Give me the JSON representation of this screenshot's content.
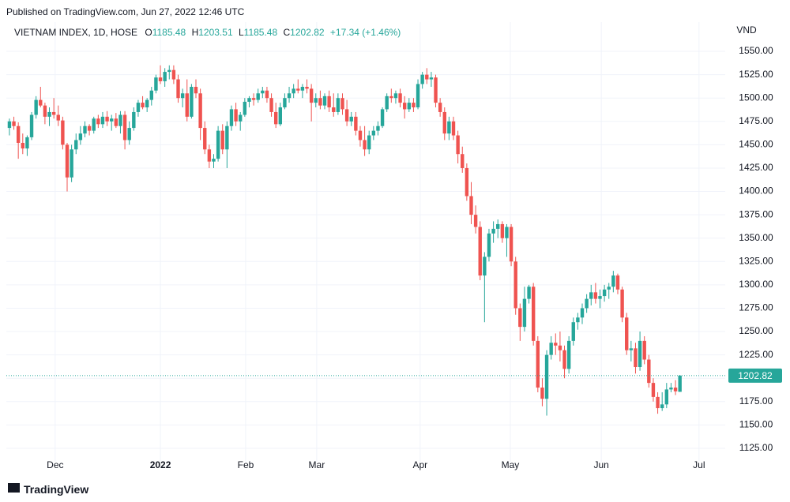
{
  "published": "Published on TradingView.com, Jun 27, 2022 12:46 UTC",
  "brand": "TradingView",
  "chart_data": {
    "type": "candlestick",
    "title": "VIETNAM INDEX, 1D, HOSE",
    "ohlc_keys": [
      "O",
      "H",
      "L",
      "C"
    ],
    "change": "+17.34 (+1.46%)",
    "unit": "VND",
    "up_color": "#26a69a",
    "down_color": "#ef5350",
    "grid": true,
    "xlim": [
      -0.7,
      161.2
    ],
    "xticks": [
      {
        "value": 10.3,
        "label": "Dec"
      },
      {
        "value": 34,
        "label": "2022"
      },
      {
        "value": 53.2,
        "label": "Feb"
      },
      {
        "value": 69.2,
        "label": "Mar"
      },
      {
        "value": 92.5,
        "label": "Apr"
      },
      {
        "value": 112.8,
        "label": "May"
      },
      {
        "value": 133.3,
        "label": "Jun"
      },
      {
        "value": 155.3,
        "label": "Jul"
      }
    ],
    "ylim": [
      1110.6,
      1581.3
    ],
    "yticks": [
      {
        "value": 1125,
        "label": "1125.00"
      },
      {
        "value": 1150,
        "label": "1150.00"
      },
      {
        "value": 1175,
        "label": "1175.00"
      },
      {
        "value": 1200,
        "label": "1200.00"
      },
      {
        "value": 1225,
        "label": "1225.00"
      },
      {
        "value": 1250,
        "label": "1250.00"
      },
      {
        "value": 1275,
        "label": "1275.00"
      },
      {
        "value": 1300,
        "label": "1300.00"
      },
      {
        "value": 1325,
        "label": "1325.00"
      },
      {
        "value": 1350,
        "label": "1350.00"
      },
      {
        "value": 1375,
        "label": "1375.00"
      },
      {
        "value": 1400,
        "label": "1400.00"
      },
      {
        "value": 1425,
        "label": "1425.00"
      },
      {
        "value": 1450,
        "label": "1450.00"
      },
      {
        "value": 1475,
        "label": "1475.00"
      },
      {
        "value": 1500,
        "label": "1500.00"
      },
      {
        "value": 1525,
        "label": "1525.00"
      },
      {
        "value": 1550,
        "label": "1550.00"
      }
    ],
    "values": [
      [
        1468,
        1478,
        1460,
        1475
      ],
      [
        1475,
        1480,
        1466,
        1470
      ],
      [
        1470,
        1474,
        1435,
        1452
      ],
      [
        1452,
        1462,
        1440,
        1446
      ],
      [
        1446,
        1460,
        1438,
        1458
      ],
      [
        1458,
        1485,
        1455,
        1482
      ],
      [
        1482,
        1502,
        1478,
        1498
      ],
      [
        1498,
        1512,
        1490,
        1492
      ],
      [
        1492,
        1495,
        1472,
        1480
      ],
      [
        1480,
        1490,
        1470,
        1485
      ],
      [
        1485,
        1500,
        1478,
        1482
      ],
      [
        1482,
        1492,
        1470,
        1476
      ],
      [
        1476,
        1480,
        1445,
        1450
      ],
      [
        1450,
        1452,
        1400,
        1415
      ],
      [
        1415,
        1450,
        1410,
        1445
      ],
      [
        1445,
        1462,
        1440,
        1455
      ],
      [
        1455,
        1470,
        1450,
        1462
      ],
      [
        1462,
        1475,
        1458,
        1470
      ],
      [
        1470,
        1472,
        1460,
        1465
      ],
      [
        1465,
        1480,
        1462,
        1478
      ],
      [
        1478,
        1482,
        1468,
        1472
      ],
      [
        1472,
        1485,
        1468,
        1480
      ],
      [
        1480,
        1486,
        1470,
        1475
      ],
      [
        1475,
        1482,
        1465,
        1478
      ],
      [
        1478,
        1484,
        1468,
        1470
      ],
      [
        1470,
        1486,
        1462,
        1482
      ],
      [
        1482,
        1486,
        1445,
        1455
      ],
      [
        1455,
        1475,
        1450,
        1468
      ],
      [
        1468,
        1490,
        1465,
        1485
      ],
      [
        1485,
        1498,
        1480,
        1495
      ],
      [
        1495,
        1502,
        1488,
        1490
      ],
      [
        1490,
        1500,
        1485,
        1498
      ],
      [
        1498,
        1512,
        1492,
        1508
      ],
      [
        1508,
        1525,
        1505,
        1522
      ],
      [
        1522,
        1535,
        1515,
        1518
      ],
      [
        1518,
        1532,
        1512,
        1528
      ],
      [
        1528,
        1535,
        1520,
        1530
      ],
      [
        1530,
        1535,
        1515,
        1520
      ],
      [
        1520,
        1525,
        1495,
        1500
      ],
      [
        1500,
        1510,
        1490,
        1505
      ],
      [
        1505,
        1520,
        1475,
        1480
      ],
      [
        1480,
        1515,
        1478,
        1512
      ],
      [
        1512,
        1520,
        1500,
        1505
      ],
      [
        1505,
        1510,
        1455,
        1468
      ],
      [
        1468,
        1475,
        1440,
        1445
      ],
      [
        1445,
        1450,
        1425,
        1432
      ],
      [
        1432,
        1440,
        1425,
        1435
      ],
      [
        1435,
        1470,
        1432,
        1465
      ],
      [
        1465,
        1472,
        1440,
        1445
      ],
      [
        1445,
        1475,
        1425,
        1470
      ],
      [
        1470,
        1492,
        1465,
        1488
      ],
      [
        1488,
        1495,
        1470,
        1475
      ],
      [
        1475,
        1485,
        1465,
        1482
      ],
      [
        1482,
        1500,
        1480,
        1496
      ],
      [
        1496,
        1502,
        1490,
        1500
      ],
      [
        1500,
        1505,
        1492,
        1498
      ],
      [
        1498,
        1510,
        1495,
        1505
      ],
      [
        1505,
        1512,
        1500,
        1508
      ],
      [
        1508,
        1512,
        1495,
        1500
      ],
      [
        1500,
        1505,
        1480,
        1485
      ],
      [
        1485,
        1495,
        1468,
        1472
      ],
      [
        1472,
        1495,
        1470,
        1490
      ],
      [
        1490,
        1505,
        1488,
        1500
      ],
      [
        1500,
        1512,
        1495,
        1505
      ],
      [
        1505,
        1515,
        1500,
        1510
      ],
      [
        1510,
        1520,
        1505,
        1508
      ],
      [
        1508,
        1515,
        1500,
        1512
      ],
      [
        1512,
        1520,
        1505,
        1510
      ],
      [
        1510,
        1515,
        1475,
        1495
      ],
      [
        1495,
        1505,
        1490,
        1500
      ],
      [
        1500,
        1508,
        1488,
        1492
      ],
      [
        1492,
        1505,
        1488,
        1502
      ],
      [
        1502,
        1508,
        1485,
        1490
      ],
      [
        1490,
        1505,
        1480,
        1485
      ],
      [
        1485,
        1505,
        1482,
        1500
      ],
      [
        1500,
        1505,
        1482,
        1488
      ],
      [
        1488,
        1498,
        1470,
        1475
      ],
      [
        1475,
        1485,
        1470,
        1480
      ],
      [
        1480,
        1485,
        1460,
        1465
      ],
      [
        1465,
        1470,
        1448,
        1455
      ],
      [
        1455,
        1470,
        1438,
        1445
      ],
      [
        1445,
        1465,
        1440,
        1460
      ],
      [
        1460,
        1470,
        1455,
        1465
      ],
      [
        1465,
        1475,
        1460,
        1470
      ],
      [
        1470,
        1490,
        1468,
        1488
      ],
      [
        1488,
        1505,
        1485,
        1502
      ],
      [
        1502,
        1510,
        1495,
        1500
      ],
      [
        1500,
        1508,
        1494,
        1505
      ],
      [
        1505,
        1510,
        1490,
        1495
      ],
      [
        1495,
        1502,
        1478,
        1488
      ],
      [
        1488,
        1500,
        1485,
        1495
      ],
      [
        1495,
        1500,
        1485,
        1490
      ],
      [
        1490,
        1520,
        1488,
        1515
      ],
      [
        1515,
        1528,
        1510,
        1525
      ],
      [
        1525,
        1532,
        1515,
        1520
      ],
      [
        1520,
        1528,
        1512,
        1522
      ],
      [
        1522,
        1525,
        1490,
        1495
      ],
      [
        1495,
        1500,
        1480,
        1485
      ],
      [
        1485,
        1490,
        1455,
        1462
      ],
      [
        1462,
        1480,
        1455,
        1475
      ],
      [
        1475,
        1480,
        1455,
        1460
      ],
      [
        1460,
        1465,
        1430,
        1440
      ],
      [
        1440,
        1448,
        1420,
        1425
      ],
      [
        1425,
        1430,
        1390,
        1395
      ],
      [
        1395,
        1410,
        1365,
        1375
      ],
      [
        1375,
        1385,
        1355,
        1362
      ],
      [
        1362,
        1368,
        1305,
        1310
      ],
      [
        1310,
        1335,
        1260,
        1330
      ],
      [
        1330,
        1360,
        1325,
        1355
      ],
      [
        1355,
        1368,
        1345,
        1360
      ],
      [
        1360,
        1370,
        1350,
        1365
      ],
      [
        1365,
        1368,
        1345,
        1350
      ],
      [
        1350,
        1365,
        1330,
        1362
      ],
      [
        1362,
        1365,
        1320,
        1325
      ],
      [
        1325,
        1330,
        1268,
        1275
      ],
      [
        1275,
        1280,
        1240,
        1255
      ],
      [
        1255,
        1298,
        1250,
        1285
      ],
      [
        1285,
        1300,
        1280,
        1298
      ],
      [
        1298,
        1302,
        1235,
        1240
      ],
      [
        1240,
        1245,
        1185,
        1190
      ],
      [
        1190,
        1200,
        1170,
        1178
      ],
      [
        1178,
        1230,
        1160,
        1225
      ],
      [
        1225,
        1245,
        1220,
        1238
      ],
      [
        1238,
        1248,
        1225,
        1235
      ],
      [
        1235,
        1250,
        1218,
        1230
      ],
      [
        1230,
        1235,
        1200,
        1210
      ],
      [
        1210,
        1245,
        1205,
        1240
      ],
      [
        1240,
        1265,
        1235,
        1260
      ],
      [
        1260,
        1270,
        1252,
        1265
      ],
      [
        1265,
        1280,
        1258,
        1275
      ],
      [
        1275,
        1290,
        1270,
        1285
      ],
      [
        1285,
        1300,
        1278,
        1292
      ],
      [
        1292,
        1302,
        1280,
        1285
      ],
      [
        1285,
        1295,
        1275,
        1288
      ],
      [
        1288,
        1300,
        1282,
        1295
      ],
      [
        1295,
        1302,
        1285,
        1298
      ],
      [
        1298,
        1315,
        1292,
        1310
      ],
      [
        1310,
        1312,
        1290,
        1295
      ],
      [
        1295,
        1298,
        1260,
        1265
      ],
      [
        1265,
        1270,
        1225,
        1230
      ],
      [
        1230,
        1240,
        1218,
        1232
      ],
      [
        1232,
        1238,
        1205,
        1212
      ],
      [
        1212,
        1250,
        1208,
        1240
      ],
      [
        1240,
        1245,
        1215,
        1220
      ],
      [
        1220,
        1225,
        1190,
        1195
      ],
      [
        1195,
        1200,
        1175,
        1180
      ],
      [
        1180,
        1185,
        1162,
        1168
      ],
      [
        1168,
        1185,
        1165,
        1172
      ],
      [
        1172,
        1195,
        1168,
        1188
      ],
      [
        1188,
        1195,
        1185,
        1190
      ],
      [
        1190,
        1198,
        1182,
        1186
      ],
      [
        1185.48,
        1203.51,
        1185.48,
        1202.82
      ]
    ]
  }
}
